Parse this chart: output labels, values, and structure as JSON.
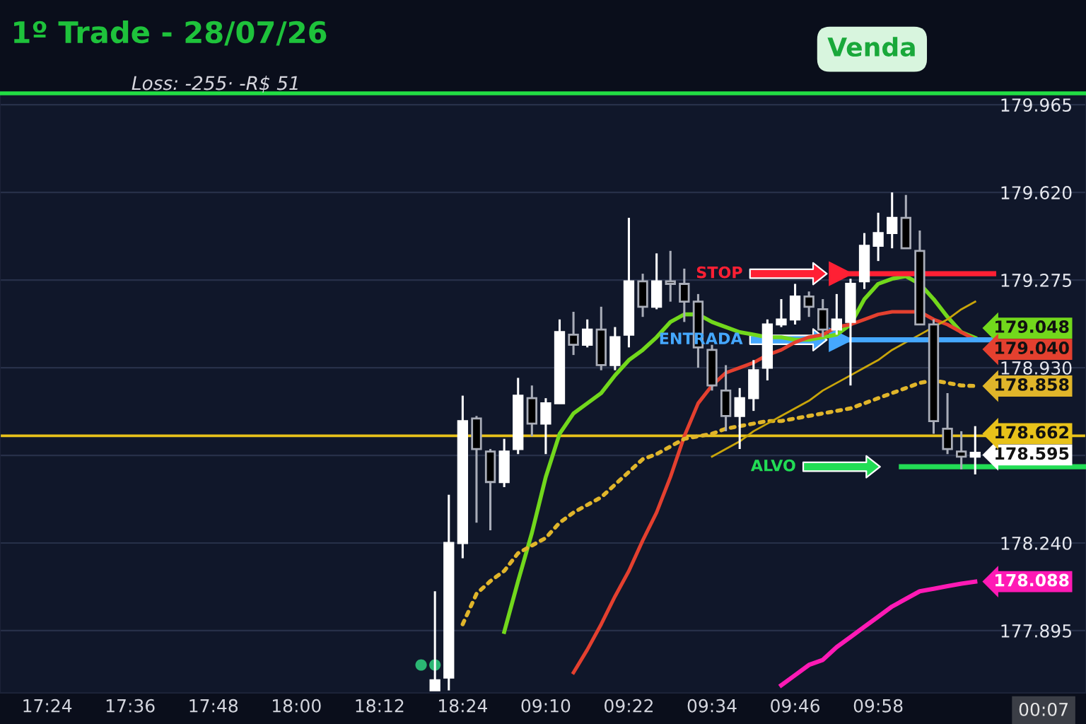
{
  "chart_data": {
    "type": "candlestick",
    "title": "1º Trade - 28/07/26",
    "subtitle": "Loss: -255· -R$ 51",
    "annotations": [
      "Venda",
      "00:07"
    ],
    "categories": [
      "17:24",
      null,
      null,
      null,
      null,
      null,
      "17:36",
      null,
      null,
      null,
      null,
      null,
      "17:48",
      null,
      null,
      null,
      null,
      null,
      "18:00",
      null,
      null,
      null,
      null,
      null,
      "18:12",
      null,
      null,
      null,
      null,
      null,
      "18:24",
      null,
      null,
      null,
      null,
      null,
      "09:10",
      null,
      null,
      null,
      null,
      null,
      "09:22",
      null,
      null,
      null,
      null,
      null,
      "09:34",
      null,
      null,
      null,
      null,
      null,
      "09:46",
      null,
      null,
      null,
      null,
      null,
      "09:58",
      null,
      null,
      null,
      null,
      null,
      null,
      null
    ],
    "ohlc": [
      null,
      null,
      null,
      null,
      null,
      null,
      null,
      null,
      null,
      null,
      null,
      null,
      null,
      null,
      null,
      null,
      null,
      null,
      null,
      null,
      null,
      null,
      null,
      null,
      null,
      null,
      null,
      null,
      [
        177.66,
        178.05,
        177.66,
        177.7
      ],
      [
        177.71,
        178.43,
        177.66,
        178.24
      ],
      [
        178.24,
        178.82,
        178.18,
        178.72
      ],
      [
        178.73,
        178.74,
        178.32,
        178.61
      ],
      [
        178.6,
        178.61,
        178.29,
        178.48
      ],
      [
        178.48,
        178.65,
        178.46,
        178.6
      ],
      [
        178.61,
        178.89,
        178.59,
        178.82
      ],
      [
        178.81,
        178.86,
        178.66,
        178.71
      ],
      [
        178.71,
        178.81,
        178.59,
        178.79
      ],
      [
        178.79,
        179.12,
        178.79,
        179.07
      ],
      [
        179.06,
        179.15,
        178.98,
        179.02
      ],
      [
        179.02,
        179.12,
        179.01,
        179.08
      ],
      [
        179.08,
        179.17,
        178.92,
        178.94
      ],
      [
        178.94,
        179.09,
        178.92,
        179.05
      ],
      [
        179.06,
        179.52,
        179.01,
        179.27
      ],
      [
        179.27,
        179.3,
        179.13,
        179.17
      ],
      [
        179.17,
        179.38,
        179.16,
        179.27
      ],
      [
        179.27,
        179.39,
        179.19,
        179.26
      ],
      [
        179.26,
        179.32,
        179.11,
        179.19
      ],
      [
        179.19,
        179.22,
        178.93,
        179.01
      ],
      [
        179.0,
        179.02,
        178.84,
        178.86
      ],
      [
        178.84,
        178.94,
        178.68,
        178.74
      ],
      [
        178.74,
        178.85,
        178.61,
        178.81
      ],
      [
        178.81,
        178.96,
        178.76,
        178.92
      ],
      [
        178.93,
        179.12,
        178.88,
        179.1
      ],
      [
        179.1,
        179.2,
        179.09,
        179.12
      ],
      [
        179.12,
        179.26,
        179.1,
        179.21
      ],
      [
        179.21,
        179.23,
        179.13,
        179.17
      ],
      [
        179.16,
        179.2,
        179.05,
        179.08
      ],
      [
        179.08,
        179.22,
        179.06,
        179.12
      ],
      [
        179.11,
        179.28,
        178.86,
        179.26
      ],
      [
        179.27,
        179.46,
        179.24,
        179.41
      ],
      [
        179.41,
        179.54,
        179.35,
        179.46
      ],
      [
        179.46,
        179.62,
        179.4,
        179.52
      ],
      [
        179.52,
        179.61,
        179.4,
        179.4
      ],
      [
        179.39,
        179.47,
        179.1,
        179.1
      ],
      [
        179.1,
        179.12,
        178.67,
        178.72
      ],
      [
        178.69,
        178.83,
        178.59,
        178.61
      ],
      [
        178.6,
        178.68,
        178.53,
        178.58
      ],
      [
        178.58,
        178.7,
        178.51,
        178.595
      ]
    ],
    "colors": [
      null,
      null,
      null,
      null,
      null,
      null,
      null,
      null,
      null,
      null,
      null,
      null,
      null,
      null,
      null,
      null,
      null,
      null,
      null,
      null,
      null,
      null,
      null,
      null,
      null,
      null,
      null,
      null,
      "#ffffff",
      "#ffffff",
      "#ffffff",
      "#000000",
      "#000000",
      "#ffffff",
      "#ffffff",
      "#000000",
      "#ffffff",
      "#ffffff",
      "#000000",
      "#ffffff",
      "#000000",
      "#ffffff",
      "#ffffff",
      "#000000",
      "#ffffff",
      "#000000",
      "#000000",
      "#000000",
      "#000000",
      "#000000",
      "#ffffff",
      "#ffffff",
      "#ffffff",
      "#ffffff",
      "#ffffff",
      "#000000",
      "#000000",
      "#ffffff",
      "#ffffff",
      "#ffffff",
      "#ffffff",
      "#ffffff",
      "#000000",
      "#000000",
      "#000000",
      "#000000",
      "#000000",
      "#ffffff"
    ],
    "value_labels": [
      null,
      null,
      null,
      null,
      null,
      null,
      null,
      null,
      null,
      null,
      null,
      null,
      null,
      null,
      null,
      null,
      null,
      null,
      null,
      null,
      null,
      null,
      null,
      null,
      null,
      null,
      null,
      null,
      null,
      null,
      null,
      null,
      null,
      null,
      null,
      null,
      null,
      null,
      null,
      null,
      null,
      null,
      null,
      null,
      null,
      null,
      null,
      null,
      null,
      null,
      null,
      null,
      null,
      null,
      null,
      null,
      null,
      null,
      null,
      null,
      null,
      null,
      null,
      null,
      null,
      null,
      null,
      "178.595"
    ],
    "series": [
      {
        "type": "line",
        "color": "#72d81c",
        "values": [
          null,
          null,
          null,
          null,
          null,
          null,
          null,
          null,
          null,
          null,
          null,
          null,
          null,
          null,
          null,
          null,
          null,
          null,
          null,
          null,
          null,
          null,
          null,
          null,
          null,
          null,
          null,
          null,
          null,
          null,
          null,
          null,
          null,
          177.89,
          178.09,
          178.28,
          178.5,
          178.67,
          178.75,
          178.79,
          178.83,
          178.9,
          178.96,
          179.0,
          179.05,
          179.11,
          179.14,
          179.14,
          179.11,
          179.09,
          179.07,
          179.06,
          179.05,
          179.05,
          179.04,
          179.04,
          179.05,
          179.06,
          179.1,
          179.2,
          179.26,
          179.28,
          179.29,
          179.26,
          179.2,
          179.13,
          179.07,
          179.048
        ],
        "value_labels": [
          null,
          null,
          null,
          null,
          null,
          null,
          null,
          null,
          null,
          null,
          null,
          null,
          null,
          null,
          null,
          null,
          null,
          null,
          null,
          null,
          null,
          null,
          null,
          null,
          null,
          null,
          null,
          null,
          null,
          null,
          null,
          null,
          null,
          null,
          null,
          null,
          null,
          null,
          null,
          null,
          null,
          null,
          null,
          null,
          null,
          null,
          null,
          null,
          null,
          null,
          null,
          null,
          null,
          null,
          null,
          null,
          null,
          null,
          null,
          null,
          null,
          null,
          null,
          null,
          null,
          null,
          null,
          "179.048"
        ]
      },
      {
        "type": "line",
        "color": "#e4402f",
        "values": [
          null,
          null,
          null,
          null,
          null,
          null,
          null,
          null,
          null,
          null,
          null,
          null,
          null,
          null,
          null,
          null,
          null,
          null,
          null,
          null,
          null,
          null,
          null,
          null,
          null,
          null,
          null,
          null,
          null,
          null,
          null,
          null,
          null,
          null,
          null,
          null,
          null,
          null,
          177.73,
          177.82,
          177.92,
          178.03,
          178.13,
          178.25,
          178.36,
          178.5,
          178.66,
          178.79,
          178.86,
          178.91,
          178.93,
          178.95,
          178.98,
          179.0,
          179.03,
          179.05,
          179.06,
          179.09,
          179.1,
          179.12,
          179.14,
          179.15,
          179.15,
          179.15,
          179.12,
          179.1,
          179.07,
          179.04
        ],
        "value_labels": [
          null,
          null,
          null,
          null,
          null,
          null,
          null,
          null,
          null,
          null,
          null,
          null,
          null,
          null,
          null,
          null,
          null,
          null,
          null,
          null,
          null,
          null,
          null,
          null,
          null,
          null,
          null,
          null,
          null,
          null,
          null,
          null,
          null,
          null,
          null,
          null,
          null,
          null,
          null,
          null,
          null,
          null,
          null,
          null,
          null,
          null,
          null,
          null,
          null,
          null,
          null,
          null,
          null,
          null,
          null,
          null,
          null,
          null,
          null,
          null,
          null,
          null,
          null,
          null,
          null,
          null,
          null,
          "179.040"
        ]
      },
      {
        "type": "line",
        "color": "#e0b52a",
        "line_style": "dotted",
        "values": [
          null,
          null,
          null,
          null,
          null,
          null,
          null,
          null,
          null,
          null,
          null,
          null,
          null,
          null,
          null,
          null,
          null,
          null,
          null,
          null,
          null,
          null,
          null,
          null,
          null,
          null,
          null,
          null,
          null,
          null,
          177.92,
          178.04,
          178.09,
          178.13,
          178.2,
          178.23,
          178.26,
          178.32,
          178.36,
          178.39,
          178.42,
          178.47,
          178.52,
          178.57,
          178.59,
          178.62,
          178.65,
          178.66,
          178.67,
          178.69,
          178.7,
          178.71,
          178.72,
          178.72,
          178.73,
          178.74,
          178.75,
          178.76,
          178.77,
          178.79,
          178.81,
          178.83,
          178.85,
          178.87,
          178.88,
          178.87,
          178.86,
          178.858
        ],
        "value_labels": [
          null,
          null,
          null,
          null,
          null,
          null,
          null,
          null,
          null,
          null,
          null,
          null,
          null,
          null,
          null,
          null,
          null,
          null,
          null,
          null,
          null,
          null,
          null,
          null,
          null,
          null,
          null,
          null,
          null,
          null,
          null,
          null,
          null,
          null,
          null,
          null,
          null,
          null,
          null,
          null,
          null,
          null,
          null,
          null,
          null,
          null,
          null,
          null,
          null,
          null,
          null,
          null,
          null,
          null,
          null,
          null,
          null,
          null,
          null,
          null,
          null,
          null,
          null,
          null,
          null,
          null,
          null,
          "178.858"
        ]
      },
      {
        "type": "line",
        "color": "#ff1ab5",
        "values": [
          null,
          null,
          null,
          null,
          null,
          null,
          null,
          null,
          null,
          null,
          null,
          null,
          null,
          null,
          null,
          null,
          null,
          null,
          null,
          null,
          null,
          null,
          null,
          null,
          null,
          null,
          null,
          null,
          null,
          null,
          null,
          null,
          null,
          null,
          null,
          null,
          null,
          null,
          null,
          null,
          null,
          null,
          null,
          null,
          null,
          null,
          null,
          null,
          null,
          null,
          null,
          null,
          null,
          177.68,
          177.72,
          177.76,
          177.78,
          177.83,
          177.87,
          177.91,
          177.95,
          177.99,
          178.02,
          178.05,
          178.06,
          178.07,
          178.08,
          178.088
        ],
        "value_labels": [
          null,
          null,
          null,
          null,
          null,
          null,
          null,
          null,
          null,
          null,
          null,
          null,
          null,
          null,
          null,
          null,
          null,
          null,
          null,
          null,
          null,
          null,
          null,
          null,
          null,
          null,
          null,
          null,
          null,
          null,
          null,
          null,
          null,
          null,
          null,
          null,
          null,
          null,
          null,
          null,
          null,
          null,
          null,
          null,
          null,
          null,
          null,
          null,
          null,
          null,
          null,
          null,
          null,
          null,
          null,
          null,
          null,
          null,
          null,
          null,
          null,
          null,
          null,
          null,
          null,
          null,
          null,
          "178.088"
        ]
      },
      {
        "type": "line",
        "color": "#c9a50a",
        "values": [
          null,
          null,
          null,
          null,
          null,
          null,
          null,
          null,
          null,
          null,
          null,
          null,
          null,
          null,
          null,
          null,
          null,
          null,
          null,
          null,
          null,
          null,
          null,
          null,
          null,
          null,
          null,
          null,
          null,
          null,
          null,
          null,
          null,
          null,
          null,
          null,
          null,
          null,
          null,
          null,
          null,
          null,
          null,
          null,
          null,
          null,
          null,
          null,
          178.58,
          178.61,
          178.64,
          178.68,
          178.71,
          178.74,
          178.77,
          178.8,
          178.84,
          178.87,
          178.9,
          178.93,
          178.96,
          179.0,
          179.03,
          179.06,
          179.09,
          179.12,
          179.16,
          179.19
        ]
      },
      {
        "type": "scatter",
        "color": "#2bb673",
        "marker": "circle",
        "values": [
          null,
          null,
          null,
          null,
          null,
          null,
          null,
          null,
          null,
          null,
          null,
          null,
          null,
          null,
          null,
          null,
          null,
          null,
          null,
          null,
          null,
          null,
          null,
          null,
          null,
          null,
          null,
          177.76,
          177.76,
          null,
          null,
          null,
          null,
          null,
          null,
          null,
          null,
          null,
          null,
          null,
          null,
          null,
          null,
          null,
          null,
          null,
          null,
          null,
          null,
          null,
          null,
          null,
          null,
          null,
          null,
          null,
          null,
          null,
          null,
          null,
          null,
          null,
          null,
          null,
          null,
          null,
          null,
          null
        ]
      }
    ],
    "ylim": [
      177.65,
      180.01
    ],
    "yticks": [
      177.895,
      {
        "value": 178.24,
        "label": "178.240"
      },
      {
        "value": 178.585,
        "label": null
      },
      {
        "value": 178.93,
        "label": "178.930"
      },
      179.275,
      {
        "value": 179.62,
        "label": "179.620"
      },
      179.965
    ],
    "grid": "y",
    "ref_lines": [
      {
        "axis": "y",
        "value": 178.662,
        "label": "178.662",
        "color": "#e8c21a"
      },
      {
        "axis": "y",
        "value": 179.3,
        "label": "STOP",
        "color": "#ff2034"
      },
      {
        "axis": "y",
        "value": 179.04,
        "label": "ENTRADA",
        "color": "#45a8ff"
      },
      {
        "axis": "y",
        "value": 178.54,
        "label": "ALVO",
        "color": "#22dd55"
      }
    ]
  }
}
